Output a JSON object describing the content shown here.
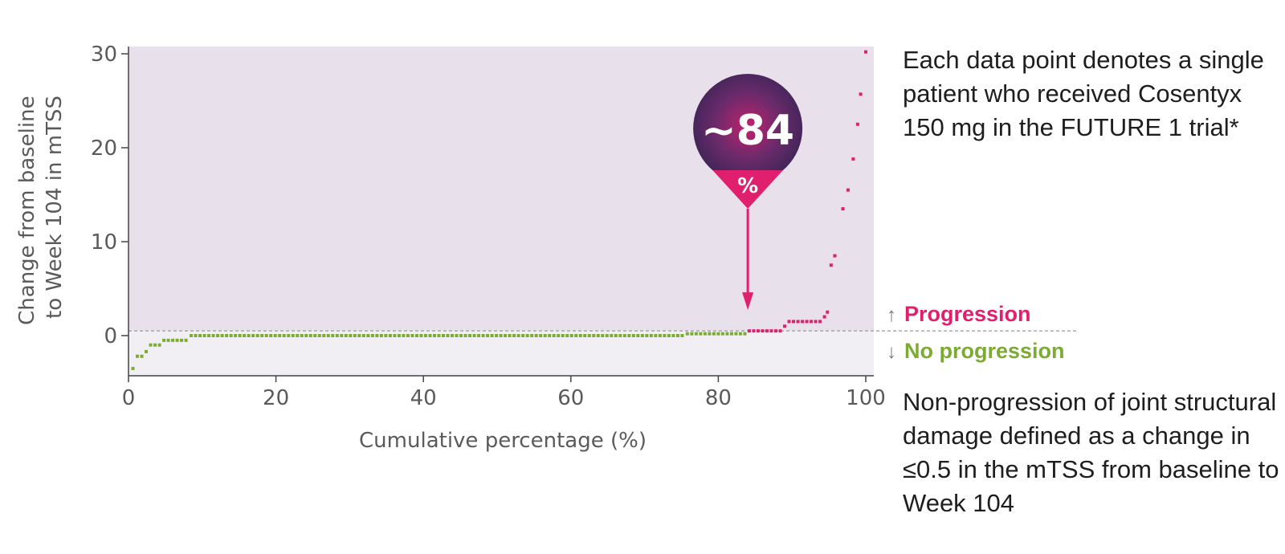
{
  "chart_data": {
    "type": "scatter",
    "title": "",
    "xlabel": "Cumulative percentage (%)",
    "ylabel": [
      "Change from baseline",
      "to Week 104 in mTSS"
    ],
    "xlim": [
      0,
      100
    ],
    "ylim": [
      -4,
      30
    ],
    "xticks": [
      "0",
      "20",
      "40",
      "60",
      "80",
      "100"
    ],
    "yticks": [
      "0",
      "10",
      "20",
      "30"
    ],
    "threshold_y": 0.5,
    "callout": {
      "x": 84,
      "value": "~84",
      "unit": "%"
    },
    "series": [
      {
        "name": "No progression",
        "color": "#7cab34",
        "points": [
          [
            0.6,
            -3.5
          ],
          [
            1.2,
            -2.2
          ],
          [
            1.8,
            -2.2
          ],
          [
            2.4,
            -1.7
          ],
          [
            3.0,
            -1.0
          ],
          [
            3.6,
            -1.0
          ],
          [
            4.2,
            -1.0
          ],
          [
            4.8,
            -0.5
          ],
          [
            5.4,
            -0.5
          ],
          [
            6.0,
            -0.5
          ],
          [
            6.6,
            -0.5
          ],
          [
            7.2,
            -0.5
          ],
          [
            7.8,
            -0.5
          ],
          [
            8.5,
            0
          ],
          [
            9.1,
            0
          ],
          [
            9.7,
            0
          ],
          [
            10.3,
            0
          ],
          [
            10.9,
            0
          ],
          [
            11.5,
            0
          ],
          [
            12.1,
            0
          ],
          [
            12.7,
            0
          ],
          [
            13.3,
            0
          ],
          [
            13.9,
            0
          ],
          [
            14.5,
            0
          ],
          [
            15.1,
            0
          ],
          [
            15.7,
            0
          ],
          [
            16.3,
            0
          ],
          [
            16.9,
            0
          ],
          [
            17.5,
            0
          ],
          [
            18.1,
            0
          ],
          [
            18.7,
            0
          ],
          [
            19.3,
            0
          ],
          [
            19.9,
            0
          ],
          [
            20.5,
            0
          ],
          [
            21.1,
            0
          ],
          [
            21.7,
            0
          ],
          [
            22.3,
            0
          ],
          [
            22.9,
            0
          ],
          [
            23.5,
            0
          ],
          [
            24.1,
            0
          ],
          [
            24.7,
            0
          ],
          [
            25.3,
            0
          ],
          [
            25.9,
            0
          ],
          [
            26.5,
            0
          ],
          [
            27.1,
            0
          ],
          [
            27.7,
            0
          ],
          [
            28.3,
            0
          ],
          [
            28.9,
            0
          ],
          [
            29.5,
            0
          ],
          [
            30.1,
            0
          ],
          [
            30.7,
            0
          ],
          [
            31.3,
            0
          ],
          [
            31.9,
            0
          ],
          [
            32.5,
            0
          ],
          [
            33.1,
            0
          ],
          [
            33.7,
            0
          ],
          [
            34.3,
            0
          ],
          [
            34.9,
            0
          ],
          [
            35.5,
            0
          ],
          [
            36.1,
            0
          ],
          [
            36.7,
            0
          ],
          [
            37.3,
            0
          ],
          [
            37.9,
            0
          ],
          [
            38.5,
            0
          ],
          [
            39.1,
            0
          ],
          [
            39.7,
            0
          ],
          [
            40.3,
            0
          ],
          [
            40.9,
            0
          ],
          [
            41.5,
            0
          ],
          [
            42.1,
            0
          ],
          [
            42.7,
            0
          ],
          [
            43.3,
            0
          ],
          [
            43.9,
            0
          ],
          [
            44.5,
            0
          ],
          [
            45.1,
            0
          ],
          [
            45.7,
            0
          ],
          [
            46.3,
            0
          ],
          [
            46.9,
            0
          ],
          [
            47.5,
            0
          ],
          [
            48.1,
            0
          ],
          [
            48.7,
            0
          ],
          [
            49.3,
            0
          ],
          [
            49.9,
            0
          ],
          [
            50.5,
            0
          ],
          [
            51.1,
            0
          ],
          [
            51.7,
            0
          ],
          [
            52.3,
            0
          ],
          [
            52.9,
            0
          ],
          [
            53.5,
            0
          ],
          [
            54.1,
            0
          ],
          [
            54.7,
            0
          ],
          [
            55.3,
            0
          ],
          [
            55.9,
            0
          ],
          [
            56.5,
            0
          ],
          [
            57.1,
            0
          ],
          [
            57.7,
            0
          ],
          [
            58.3,
            0
          ],
          [
            58.9,
            0
          ],
          [
            59.5,
            0
          ],
          [
            60.1,
            0
          ],
          [
            60.7,
            0
          ],
          [
            61.3,
            0
          ],
          [
            61.9,
            0
          ],
          [
            62.5,
            0
          ],
          [
            63.1,
            0
          ],
          [
            63.7,
            0
          ],
          [
            64.3,
            0
          ],
          [
            64.9,
            0
          ],
          [
            65.5,
            0
          ],
          [
            66.1,
            0
          ],
          [
            66.7,
            0
          ],
          [
            67.3,
            0
          ],
          [
            67.9,
            0
          ],
          [
            68.5,
            0
          ],
          [
            69.1,
            0
          ],
          [
            69.7,
            0
          ],
          [
            70.3,
            0
          ],
          [
            70.9,
            0
          ],
          [
            71.5,
            0
          ],
          [
            72.1,
            0
          ],
          [
            72.7,
            0
          ],
          [
            73.3,
            0
          ],
          [
            73.9,
            0
          ],
          [
            74.5,
            0
          ],
          [
            75.1,
            0
          ],
          [
            75.8,
            0.2
          ],
          [
            76.4,
            0.2
          ],
          [
            77.0,
            0.2
          ],
          [
            77.6,
            0.2
          ],
          [
            78.2,
            0.2
          ],
          [
            78.8,
            0.2
          ],
          [
            79.4,
            0.2
          ],
          [
            80.0,
            0.2
          ],
          [
            80.6,
            0.2
          ],
          [
            81.2,
            0.2
          ],
          [
            81.8,
            0.2
          ],
          [
            82.4,
            0.2
          ],
          [
            83.0,
            0.2
          ],
          [
            83.6,
            0.2
          ]
        ]
      },
      {
        "name": "Progression",
        "color": "#e0206e",
        "points": [
          [
            84.2,
            0.5
          ],
          [
            84.8,
            0.5
          ],
          [
            85.4,
            0.5
          ],
          [
            86.0,
            0.5
          ],
          [
            86.6,
            0.5
          ],
          [
            87.2,
            0.5
          ],
          [
            87.8,
            0.5
          ],
          [
            88.4,
            0.5
          ],
          [
            89.0,
            1.0
          ],
          [
            89.6,
            1.5
          ],
          [
            90.2,
            1.5
          ],
          [
            90.8,
            1.5
          ],
          [
            91.4,
            1.5
          ],
          [
            92.0,
            1.5
          ],
          [
            92.6,
            1.5
          ],
          [
            93.2,
            1.5
          ],
          [
            93.8,
            1.5
          ],
          [
            94.4,
            2.0
          ],
          [
            94.8,
            2.5
          ],
          [
            95.3,
            7.5
          ],
          [
            95.8,
            8.5
          ],
          [
            96.9,
            13.5
          ],
          [
            97.6,
            15.5
          ],
          [
            98.3,
            18.8
          ],
          [
            98.9,
            22.5
          ],
          [
            99.3,
            25.7
          ],
          [
            100,
            30.2
          ]
        ]
      }
    ]
  },
  "legend": {
    "progression_arrow": "↑",
    "progression_label": "Progression",
    "progression_color": "#e0206e",
    "no_progression_arrow": "↓",
    "no_progression_label": "No progression",
    "no_progression_color": "#7cab34"
  },
  "notes": {
    "note1": "Each data point denotes a single patient who received Cosentyx 150 mg in the FUTURE 1 trial*",
    "note2": "Non-progression of joint structural damage defined as a change in ≤0.5 in the mTSS from baseline to Week 104"
  }
}
